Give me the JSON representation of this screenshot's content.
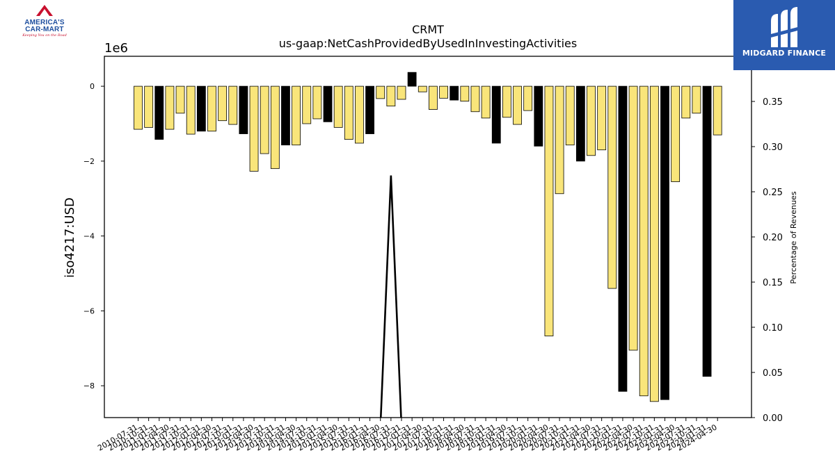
{
  "logos": {
    "left": {
      "line1": "AMERICA'S",
      "line2": "CAR-MART",
      "tagline": "Keeping You on the Road"
    },
    "right": {
      "name": "MIDGARD FINANCE"
    }
  },
  "chart_data": {
    "type": "bar",
    "title": "CRMT",
    "subtitle": "us-gaap:NetCashProvidedByUsedInInvestingActivities",
    "ylabel": "iso4217:USD",
    "y_offset_label": "1e6",
    "y2label": "Percentage of Revenues",
    "ylim": [
      -8.85,
      0.8
    ],
    "y2lim": [
      0.0,
      0.4
    ],
    "yticks": [
      0,
      -2,
      -4,
      -6,
      -8
    ],
    "yticklabels": [
      "0",
      "−2",
      "−4",
      "−6",
      "−8"
    ],
    "y2ticks": [
      0.0,
      0.05,
      0.1,
      0.15,
      0.2,
      0.25,
      0.3,
      0.35,
      0.4
    ],
    "y2ticklabels": [
      "0.00",
      "0.05",
      "0.10",
      "0.15",
      "0.20",
      "0.25",
      "0.30",
      "0.35",
      "0.40"
    ],
    "colors": {
      "bar_quarter": "#f9e57a",
      "bar_annual": "#000000",
      "bar_edge": "#000000",
      "line": "#000000"
    },
    "categories": [
      "2010-07-31",
      "2010-10-31",
      "2011-01-31",
      "2011-04-30",
      "2011-07-31",
      "2011-10-31",
      "2012-01-31",
      "2012-04-30",
      "2012-07-31",
      "2012-10-31",
      "2013-01-31",
      "2013-04-30",
      "2013-07-31",
      "2013-10-31",
      "2014-01-31",
      "2014-04-30",
      "2014-07-31",
      "2014-10-31",
      "2015-01-31",
      "2015-04-30",
      "2015-07-31",
      "2015-10-31",
      "2016-01-31",
      "2016-04-30",
      "2016-07-31",
      "2016-10-31",
      "2017-01-31",
      "2017-04-30",
      "2017-07-31",
      "2017-10-31",
      "2018-01-31",
      "2018-04-30",
      "2018-07-31",
      "2018-10-31",
      "2019-01-31",
      "2019-04-30",
      "2019-07-31",
      "2019-10-31",
      "2020-01-31",
      "2020-04-30",
      "2020-07-31",
      "2020-10-31",
      "2021-01-31",
      "2021-04-30",
      "2021-07-31",
      "2021-10-31",
      "2022-01-31",
      "2022-04-30",
      "2022-07-31",
      "2022-10-31",
      "2023-01-31",
      "2023-04-30",
      "2023-07-31",
      "2023-10-31",
      "2024-01-31",
      "2024-04-30"
    ],
    "values": [
      -1.15,
      -1.1,
      -1.42,
      -1.15,
      -0.72,
      -1.28,
      -1.2,
      -1.2,
      -0.92,
      -1.02,
      -1.27,
      -2.27,
      -1.8,
      -2.2,
      -1.57,
      -1.57,
      -1.0,
      -0.87,
      -0.95,
      -1.1,
      -1.42,
      -1.52,
      -1.27,
      -0.33,
      -0.53,
      -0.35,
      0.37,
      -0.15,
      -0.62,
      -0.32,
      -0.37,
      -0.4,
      -0.68,
      -0.85,
      -1.52,
      -0.83,
      -1.02,
      -0.65,
      -1.6,
      -6.67,
      -2.87,
      -1.57,
      -2.0,
      -1.85,
      -1.7,
      -5.4,
      -8.15,
      -7.05,
      -8.27,
      -8.42,
      -8.37,
      -2.55,
      -0.85,
      -0.72,
      -7.75,
      -1.3
    ],
    "annual": [
      false,
      false,
      true,
      false,
      false,
      false,
      true,
      false,
      false,
      false,
      true,
      false,
      false,
      false,
      true,
      false,
      false,
      false,
      true,
      false,
      false,
      false,
      true,
      false,
      false,
      false,
      true,
      false,
      false,
      false,
      true,
      false,
      false,
      false,
      true,
      false,
      false,
      false,
      true,
      false,
      false,
      false,
      true,
      false,
      false,
      false,
      true,
      false,
      false,
      false,
      true,
      false,
      false,
      false,
      true,
      false
    ],
    "line": {
      "series_name": "",
      "x": [
        "2016-04-30",
        "2016-07-31",
        "2016-10-31"
      ],
      "y": [
        -0.01,
        0.268,
        -0.01
      ]
    }
  }
}
